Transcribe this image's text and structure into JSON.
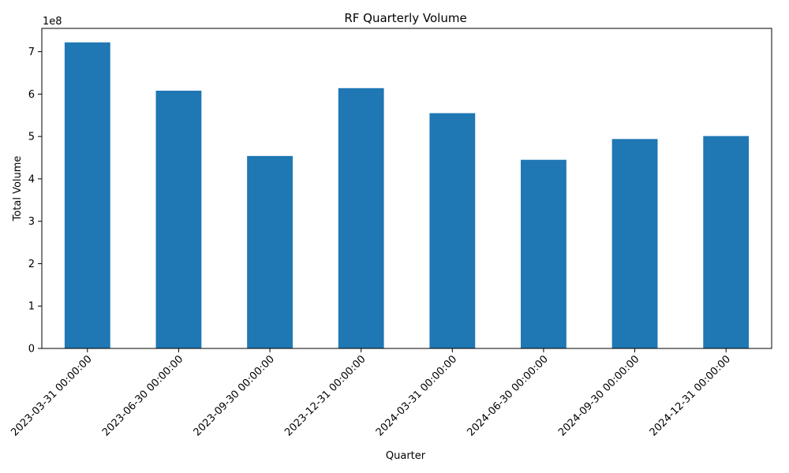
{
  "chart_data": {
    "type": "bar",
    "title": "RF Quarterly Volume",
    "xlabel": "Quarter",
    "ylabel": "Total Volume",
    "y_offset_label": "1e8",
    "y_scale": 100000000,
    "ylim": [
      0,
      755000000
    ],
    "yticks": [
      0,
      100000000,
      200000000,
      300000000,
      400000000,
      500000000,
      600000000,
      700000000
    ],
    "ytick_labels": [
      "0",
      "1",
      "2",
      "3",
      "4",
      "5",
      "6",
      "7"
    ],
    "categories": [
      "2023-03-31 00:00:00",
      "2023-06-30 00:00:00",
      "2023-09-30 00:00:00",
      "2023-12-31 00:00:00",
      "2024-03-31 00:00:00",
      "2024-06-30 00:00:00",
      "2024-09-30 00:00:00",
      "2024-12-31 00:00:00"
    ],
    "values": [
      722000000,
      608000000,
      454000000,
      614000000,
      555000000,
      445000000,
      494000000,
      501000000
    ],
    "bar_color": "#1f77b4",
    "grid": false,
    "legend": "none"
  }
}
